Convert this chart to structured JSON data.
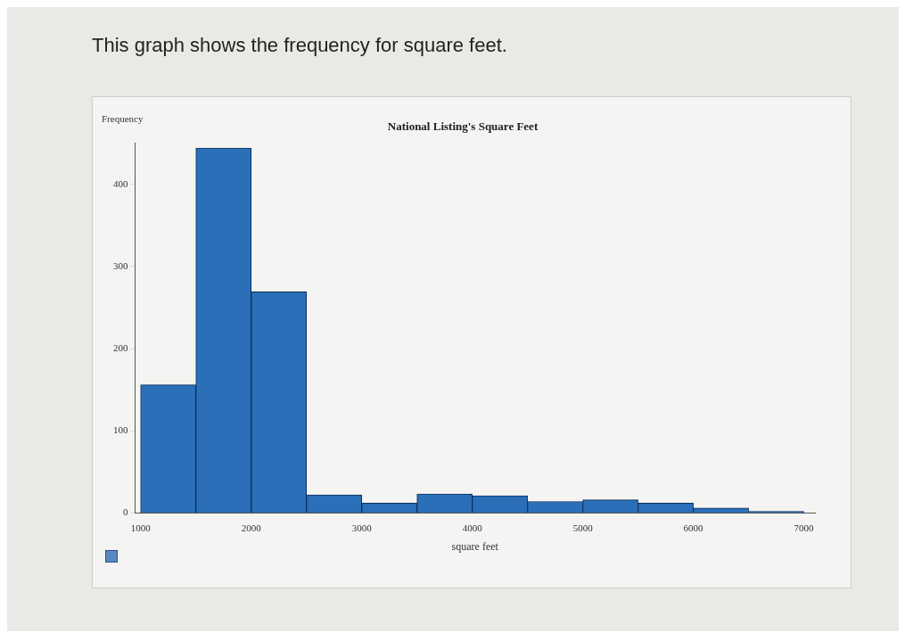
{
  "chart_data": {
    "type": "histogram",
    "title": "National Listing's Square Feet",
    "annotations": [
      "This graph shows the frequency for square feet."
    ],
    "xlabel": "square feet",
    "ylabel": "Frequency",
    "bins": [
      1000,
      1500,
      2000,
      2500,
      3000,
      3500,
      4000,
      4500,
      5000,
      5500,
      6000,
      6500,
      7000
    ],
    "values": [
      156,
      444,
      269,
      22,
      12,
      23,
      21,
      14,
      16,
      12,
      6,
      2
    ],
    "color": "#2a6fb8",
    "xlim": [
      950,
      7100
    ],
    "xticks": [
      1000,
      2000,
      3000,
      4000,
      5000,
      6000,
      7000
    ],
    "ylim": [
      0,
      450
    ],
    "yticks": [
      0,
      100,
      200,
      300,
      400
    ],
    "grid": false,
    "legend": false
  }
}
